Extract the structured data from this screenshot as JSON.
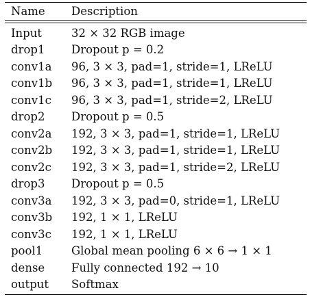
{
  "table": {
    "headers": {
      "name": "Name",
      "description": "Description"
    },
    "rows": [
      {
        "name": "Input",
        "desc": "32 × 32 RGB image"
      },
      {
        "name": "drop1",
        "desc": "Dropout p = 0.2"
      },
      {
        "name": "conv1a",
        "desc": "96, 3 × 3, pad=1, stride=1, LReLU"
      },
      {
        "name": "conv1b",
        "desc": "96, 3 × 3, pad=1, stride=1, LReLU"
      },
      {
        "name": "conv1c",
        "desc": "96, 3 × 3, pad=1, stride=2, LReLU"
      },
      {
        "name": "drop2",
        "desc": "Dropout p = 0.5"
      },
      {
        "name": "conv2a",
        "desc": "192, 3 × 3, pad=1, stride=1, LReLU"
      },
      {
        "name": "conv2b",
        "desc": "192, 3 × 3, pad=1, stride=1, LReLU"
      },
      {
        "name": "conv2c",
        "desc": "192, 3 × 3, pad=1, stride=2, LReLU"
      },
      {
        "name": "drop3",
        "desc": "Dropout p = 0.5"
      },
      {
        "name": "conv3a",
        "desc": "192, 3 × 3, pad=0, stride=1, LReLU"
      },
      {
        "name": "conv3b",
        "desc": "192, 1 × 1, LReLU"
      },
      {
        "name": "conv3c",
        "desc": "192, 1 × 1, LReLU"
      },
      {
        "name": "pool1",
        "desc": "Global mean pooling 6 × 6 → 1 × 1"
      },
      {
        "name": "dense",
        "desc": "Fully connected 192 → 10"
      },
      {
        "name": "output",
        "desc": "Softmax"
      }
    ]
  }
}
